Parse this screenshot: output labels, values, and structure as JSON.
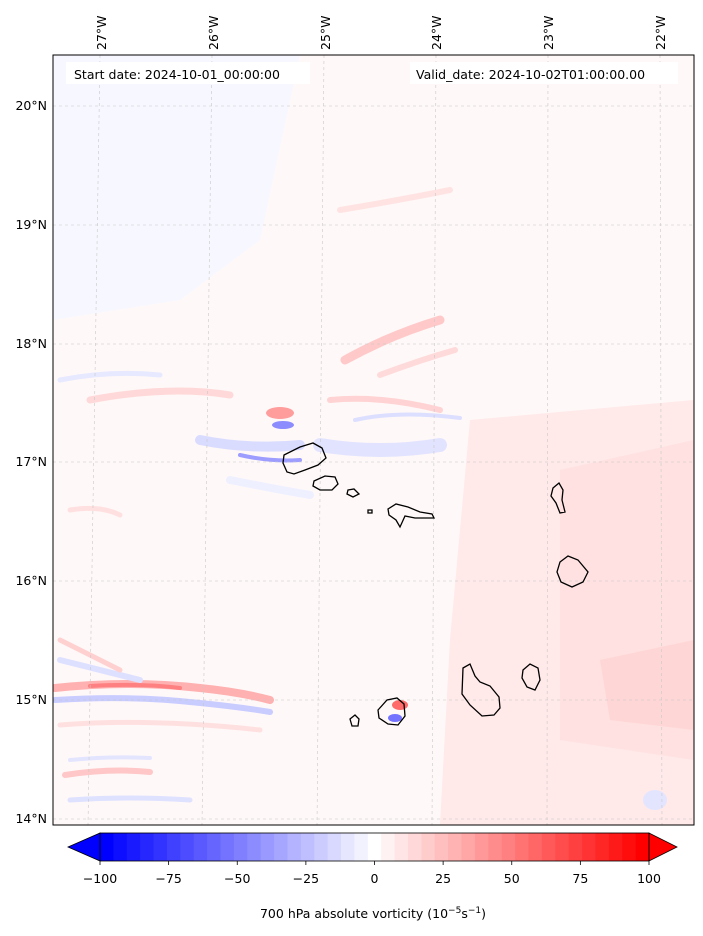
{
  "header": {
    "start_date": "Start date: 2024-10-01_00:00:00",
    "valid_date": "Valid_date: 2024-10-02T01:00:00.00"
  },
  "map": {
    "lon_range": [
      -27.5,
      -21.8
    ],
    "lat_range": [
      13.95,
      20.42
    ],
    "lon_ticks": [
      "27°W",
      "26°W",
      "25°W",
      "24°W",
      "23°W",
      "22°W"
    ],
    "lat_ticks": [
      "14°N",
      "15°N",
      "16°N",
      "17°N",
      "18°N",
      "19°N",
      "20°N"
    ],
    "gridlines": true,
    "coastline_color": "#000000"
  },
  "colorbar": {
    "min": -100,
    "max": 100,
    "levels": 41,
    "extend": "both",
    "tick_labels": [
      "−100",
      "−75",
      "−50",
      "−25",
      "0",
      "25",
      "50",
      "75",
      "100"
    ],
    "low_color": "#0000ff",
    "mid_color": "#ffffff",
    "high_color": "#ff0000",
    "label_main": "700 hPa absolute vorticity (10",
    "label_exp1": "−5",
    "label_mid": "s",
    "label_exp2": "−1",
    "label_end": ")"
  }
}
